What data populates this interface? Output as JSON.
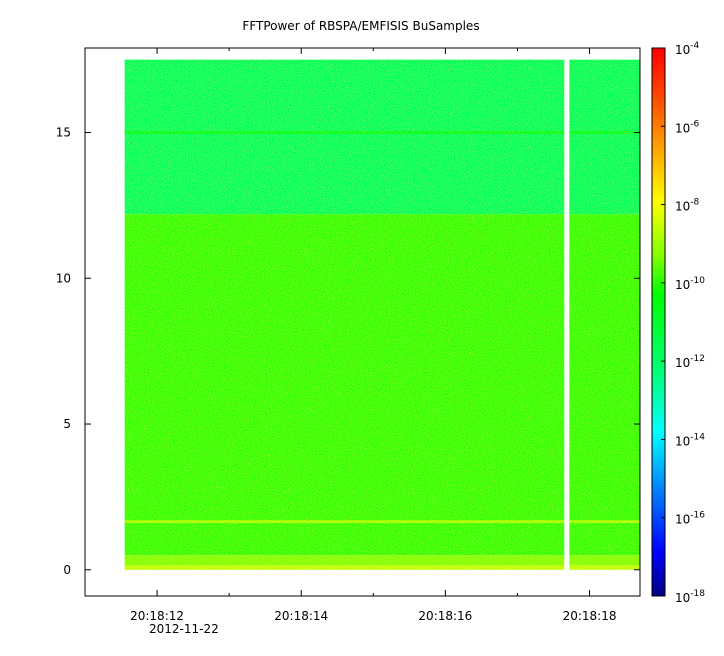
{
  "chart_data": {
    "type": "heatmap",
    "title": "FFTPower of RBSPA/EMFISIS  BuSamples",
    "x": {
      "start": "20:18:11",
      "end": "20:18:18.7",
      "tick_labels": [
        "20:18:12",
        "20:18:14",
        "20:18:16",
        "20:18:18"
      ],
      "tick_values_sec": [
        12,
        14,
        16,
        18
      ],
      "minor_tick_values_sec": [
        11,
        13,
        15,
        17
      ],
      "date_label": "2012-11-22",
      "data_range_sec": [
        11.55,
        18.7
      ],
      "gap_sec": [
        17.65,
        17.72
      ]
    },
    "y": {
      "range": [
        -0.9,
        17.9
      ],
      "ticks": [
        0,
        5,
        10,
        15
      ],
      "tick_labels": [
        "0",
        "5",
        "10",
        "15"
      ],
      "data_range": [
        0,
        17.5
      ]
    },
    "colorbar": {
      "scale": "log",
      "range": [
        1e-18,
        0.0001
      ],
      "tick_labels": [
        {
          "base": "10",
          "exp": "-4"
        },
        {
          "base": "10",
          "exp": "-6"
        },
        {
          "base": "10",
          "exp": "-8"
        },
        {
          "base": "10",
          "exp": "-10"
        },
        {
          "base": "10",
          "exp": "-12"
        },
        {
          "base": "10",
          "exp": "-14"
        },
        {
          "base": "10",
          "exp": "-16"
        },
        {
          "base": "10",
          "exp": "-18"
        }
      ],
      "tick_exponents": [
        -4,
        -6,
        -8,
        -10,
        -12,
        -14,
        -16,
        -18
      ],
      "colormap": [
        "#000080",
        "#0000ff",
        "#00a0ff",
        "#00ffff",
        "#00ff80",
        "#00ff00",
        "#80ff00",
        "#ffff00",
        "#ffa000",
        "#ff4000",
        "#ff0000"
      ]
    },
    "bands": [
      {
        "y_min": 12.2,
        "y_max": 17.5,
        "log_power": -11.8
      },
      {
        "y_min": 0.5,
        "y_max": 12.2,
        "log_power": -9.9
      },
      {
        "y_min": 0.15,
        "y_max": 0.5,
        "log_power": -9.3
      },
      {
        "y_min": 0.0,
        "y_max": 0.15,
        "log_power": -8.6
      }
    ],
    "lines": [
      {
        "y": 1.65,
        "log_power": -8.9
      },
      {
        "y": 15.0,
        "log_power": -10.8
      }
    ]
  }
}
